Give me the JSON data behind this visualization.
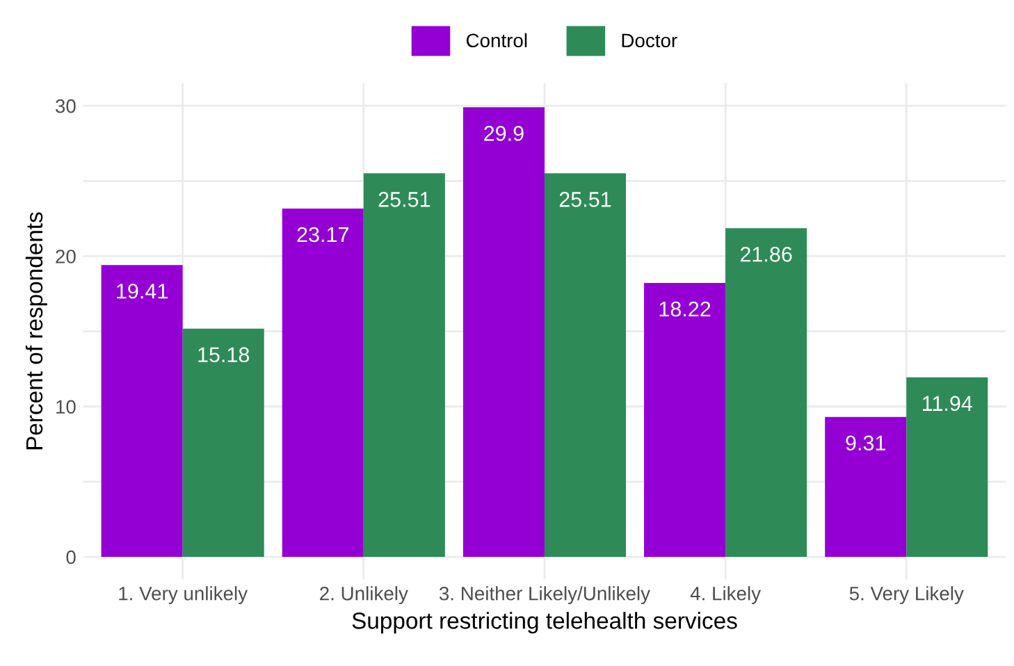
{
  "chart_data": {
    "type": "bar",
    "xlabel": "Support restricting telehealth services",
    "ylabel": "Percent of respondents",
    "categories": [
      "1. Very unlikely",
      "2. Unlikely",
      "3. Neither Likely/Unlikely",
      "4. Likely",
      "5. Very Likely"
    ],
    "series": [
      {
        "name": "Control",
        "color": "#9400d3",
        "values": [
          19.41,
          23.17,
          29.9,
          18.22,
          9.31
        ]
      },
      {
        "name": "Doctor",
        "color": "#2e8b57",
        "values": [
          15.18,
          25.51,
          25.51,
          21.86,
          11.94
        ]
      }
    ],
    "ylim": [
      -1.5,
      31.5
    ],
    "yticks": [
      0,
      {
        "value": 5,
        "label": null
      },
      10,
      {
        "value": 15,
        "label": null
      },
      20,
      {
        "value": 25,
        "label": null
      },
      30
    ],
    "grid": true,
    "legend": "top",
    "data_labels": true
  }
}
